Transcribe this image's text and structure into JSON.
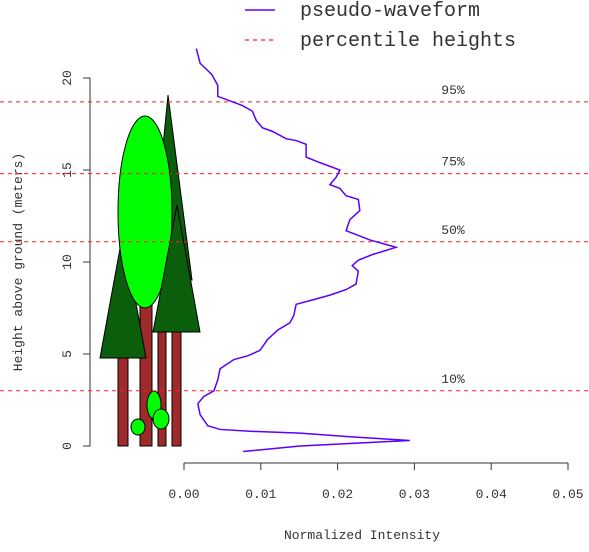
{
  "chart_data": {
    "type": "line",
    "x_label": "Normalized Intensity",
    "y_label": "Height above ground (meters)",
    "xlim": [
      0,
      0.05
    ],
    "xticks": [
      {
        "value": 0,
        "label": "0.00"
      },
      {
        "value": 0.01,
        "label": "0.01"
      },
      {
        "value": 0.02,
        "label": "0.02"
      },
      {
        "value": 0.03,
        "label": "0.03"
      },
      {
        "value": 0.04,
        "label": "0.04"
      },
      {
        "value": 0.05,
        "label": "0.05"
      }
    ],
    "ylim": [
      0,
      20
    ],
    "yticks": [
      0,
      5,
      10,
      15,
      20
    ],
    "series": [
      {
        "name": "pseudo-waveform",
        "color": "#5a00ff",
        "x": [
          0.0016,
          0.0021,
          0.0036,
          0.0044,
          0.0044,
          0.0057,
          0.0076,
          0.0089,
          0.0094,
          0.0102,
          0.0115,
          0.0133,
          0.0146,
          0.0159,
          0.0159,
          0.0177,
          0.0203,
          0.0198,
          0.019,
          0.0203,
          0.0211,
          0.0227,
          0.0229,
          0.0216,
          0.0211,
          0.0242,
          0.0276,
          0.0245,
          0.0227,
          0.0219,
          0.0227,
          0.0224,
          0.0211,
          0.019,
          0.0164,
          0.0146,
          0.0143,
          0.0138,
          0.0122,
          0.0109,
          0.0099,
          0.0083,
          0.0065,
          0.0047,
          0.0044,
          0.0039,
          0.0026,
          0.0018,
          0.0021,
          0.0031,
          0.0047,
          0.0086,
          0.0151,
          0.0216,
          0.0294,
          0.0151,
          0.0077
        ],
        "values": [
          21.6,
          20.8,
          20.2,
          19.6,
          19.0,
          18.8,
          18.5,
          18.2,
          17.7,
          17.3,
          17.1,
          16.7,
          16.6,
          16.4,
          15.7,
          15.4,
          15.0,
          14.6,
          14.2,
          14.0,
          13.6,
          13.4,
          12.8,
          12.3,
          11.7,
          11.2,
          10.8,
          10.4,
          10.1,
          9.8,
          9.5,
          8.8,
          8.5,
          8.2,
          7.9,
          7.7,
          7.1,
          6.7,
          6.3,
          5.8,
          5.2,
          4.9,
          4.7,
          4.2,
          3.6,
          3.0,
          2.7,
          2.3,
          1.7,
          1.1,
          0.9,
          0.8,
          0.7,
          0.5,
          0.3,
          0.0,
          -0.3
        ]
      }
    ],
    "percentiles": {
      "name": "percentile heights",
      "color": "#ff2020",
      "lines": [
        {
          "label": "95%",
          "height": 18.7
        },
        {
          "label": "75%",
          "height": 14.8
        },
        {
          "label": "50%",
          "height": 11.1
        },
        {
          "label": "10%",
          "height": 3.0
        }
      ]
    }
  }
}
